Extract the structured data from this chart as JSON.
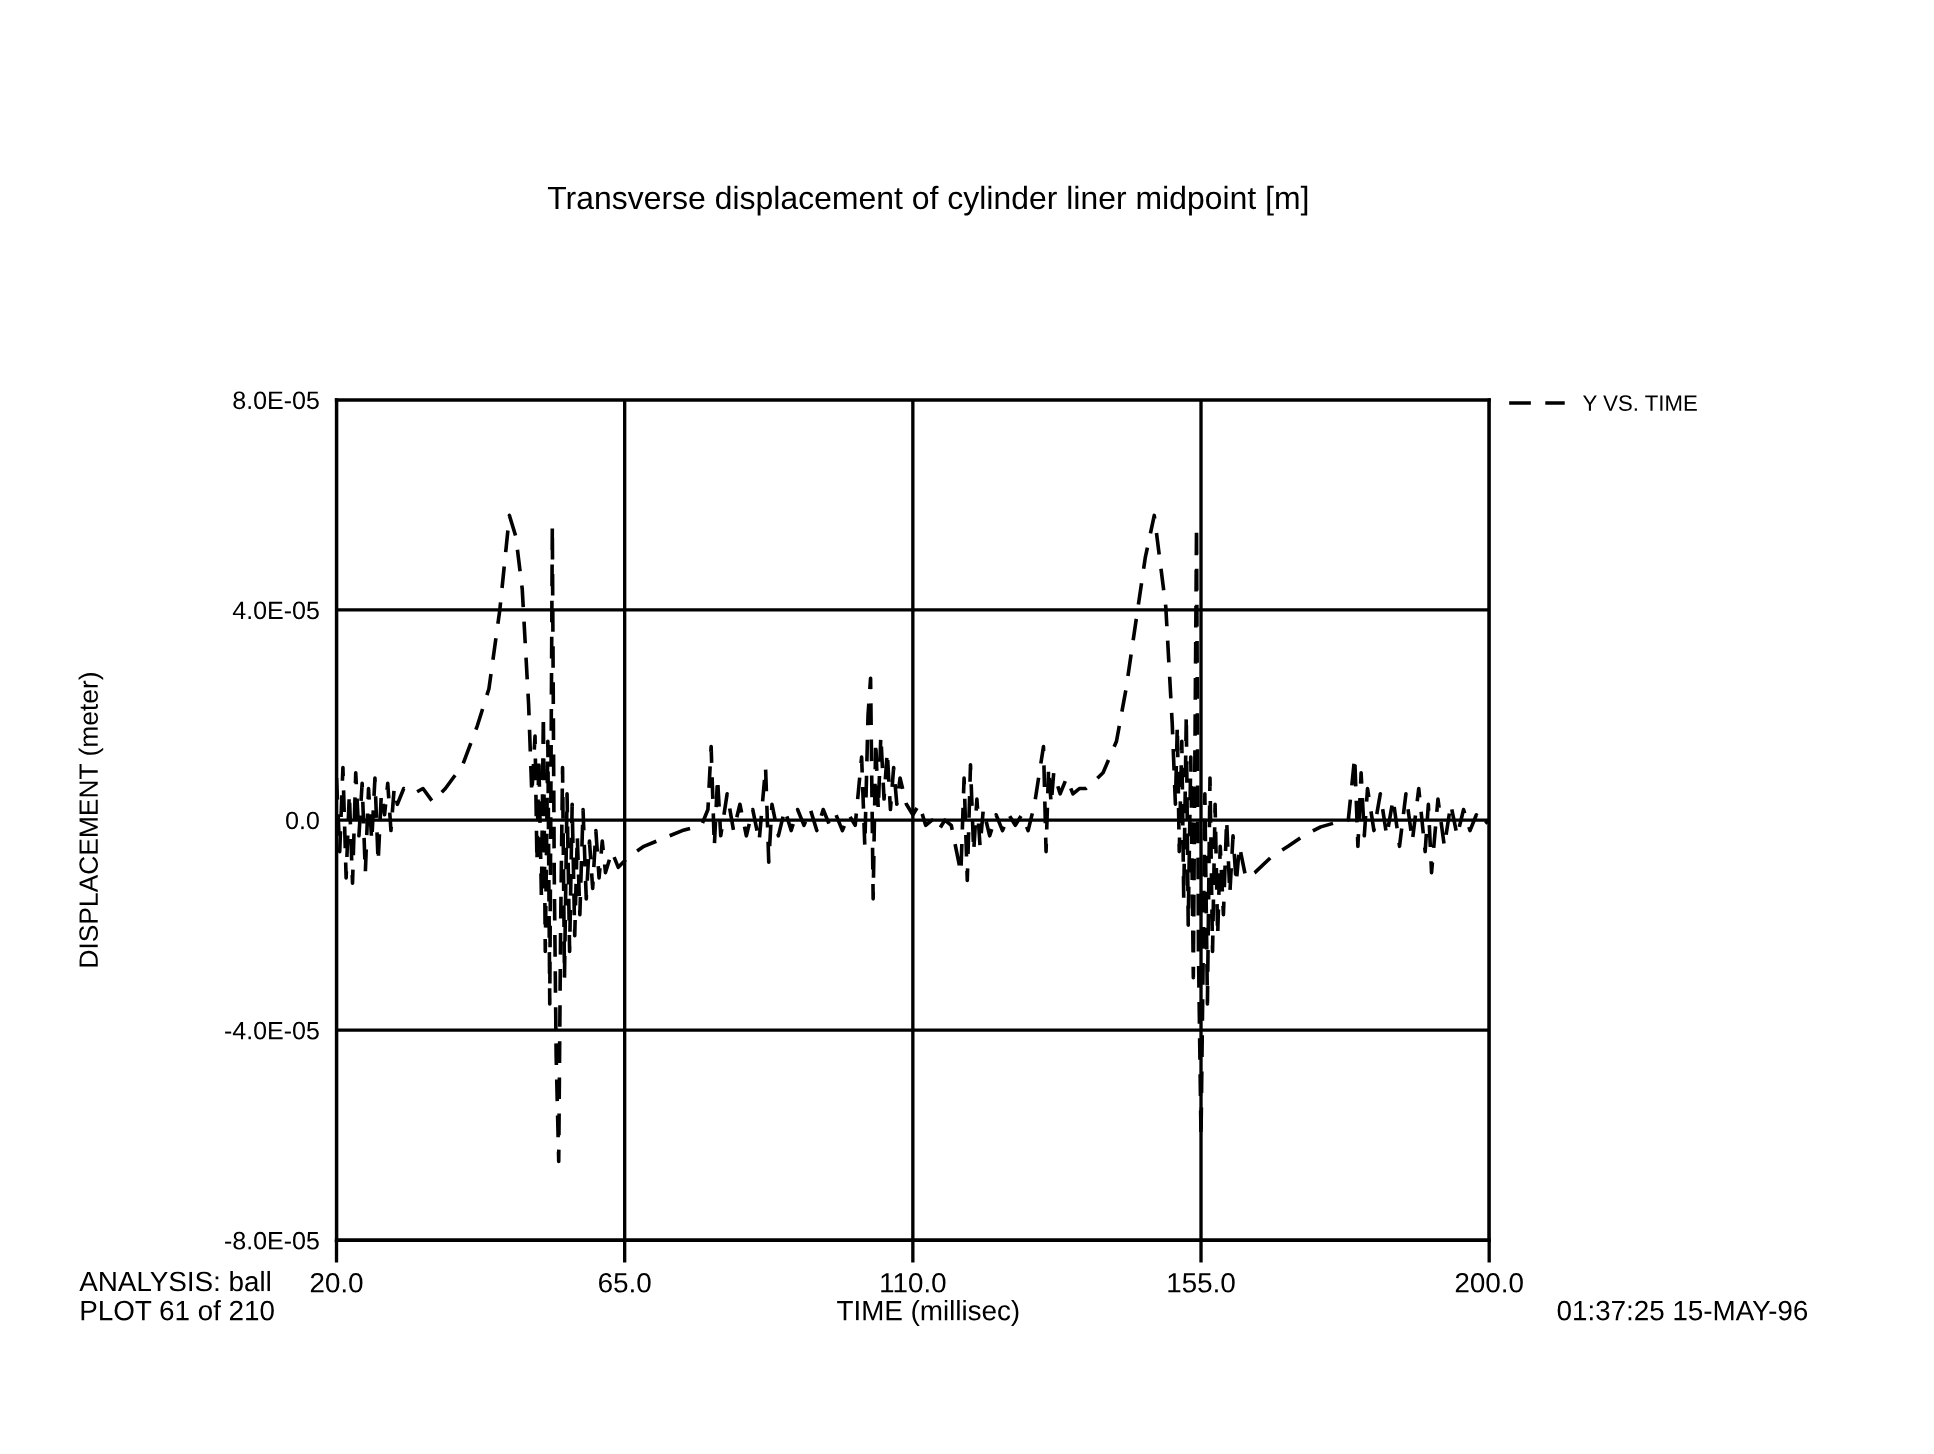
{
  "chart_data": {
    "type": "line",
    "title": "Transverse displacement of cylinder liner midpoint [m]",
    "xlabel": "TIME (millisec)",
    "ylabel": "DISPLACEMENT (meter)",
    "annotations": [
      "ANALYSIS: ball",
      "PLOT 61 of 210",
      "01:37:25 15-MAY-96"
    ],
    "xlim": [
      20,
      200
    ],
    "xticks": [
      {
        "value": 20,
        "label": "20.0"
      },
      {
        "value": 65,
        "label": "65.0"
      },
      {
        "value": 110,
        "label": "110.0"
      },
      {
        "value": 155,
        "label": "155.0"
      },
      {
        "value": 200,
        "label": "200.0"
      }
    ],
    "ylim": [
      -8e-05,
      8e-05
    ],
    "yticks": [
      {
        "value": -8e-05,
        "label": "-8.0E-05"
      },
      {
        "value": -4e-05,
        "label": "-4.0E-05"
      },
      {
        "value": 0,
        "label": "0.0"
      },
      {
        "value": 4e-05,
        "label": "4.0E-05"
      },
      {
        "value": 8e-05,
        "label": "8.0E-05"
      }
    ],
    "grid": true,
    "legend": "top right",
    "line_style": "dashed",
    "marker": "none",
    "series": [
      {
        "name": "Y VS. TIME",
        "color": "#000000",
        "x": [
          20,
          20.5,
          21,
          21.5,
          22,
          22.5,
          23,
          23.5,
          24,
          24.5,
          25,
          25.5,
          26,
          26.5,
          27,
          27.5,
          28,
          28.5,
          29,
          29.5,
          30.5,
          32,
          33.5,
          35,
          37,
          39.7,
          42,
          43.8,
          45.5,
          47,
          48,
          49,
          50,
          50.5,
          51,
          51.3,
          51.6,
          52,
          52.3,
          52.6,
          53,
          53.3,
          53.7,
          54,
          54.3,
          54.7,
          55,
          55.3,
          55.6,
          56,
          56.4,
          56.8,
          57.2,
          57.6,
          58,
          58.5,
          59,
          59.5,
          60,
          60.5,
          61,
          61.5,
          62,
          63,
          64,
          65.6,
          68,
          70.8,
          74,
          77,
          78,
          78.5,
          79,
          79.5,
          80,
          81,
          82,
          83,
          84,
          85,
          86,
          87,
          87.5,
          88,
          89,
          90,
          91,
          92,
          93,
          94,
          95,
          96,
          97,
          98,
          99,
          100,
          101,
          102,
          102.5,
          103,
          103.4,
          103.8,
          104.2,
          104.6,
          105,
          105.5,
          106,
          106.5,
          107,
          107.5,
          108,
          109,
          110,
          111,
          112,
          113,
          114,
          115,
          116,
          117.5,
          118,
          118.5,
          119,
          119.5,
          120,
          120.5,
          121,
          122,
          123,
          124,
          125,
          126,
          127,
          128,
          129,
          130.4,
          130.8,
          131.2,
          131.6,
          132,
          133,
          134,
          135,
          136,
          137,
          138,
          139.7,
          141.8,
          143.3,
          144.8,
          146.3,
          147.7,
          149.5,
          150.5,
          151,
          151.3,
          151.6,
          152,
          152.3,
          152.7,
          153,
          153.4,
          153.8,
          154.3,
          154.6,
          155,
          155.3,
          155.6,
          156,
          156.4,
          156.8,
          157.2,
          157.6,
          158,
          158.5,
          159,
          159.5,
          160,
          160.5,
          161,
          162,
          163.4,
          166,
          168.6,
          171,
          173.7,
          176,
          178,
          179,
          179.5,
          180,
          180.5,
          181,
          182,
          183,
          184,
          185,
          186,
          187,
          188,
          189,
          190,
          190.5,
          191,
          192,
          193,
          194,
          195,
          196,
          197,
          198,
          199,
          200
        ],
        "values": [
          8e-06,
          -6e-06,
          1e-05,
          -1.1e-05,
          5e-06,
          -1.2e-05,
          9e-06,
          -3e-06,
          7e-06,
          -1e-05,
          6e-06,
          -4e-06,
          8e-06,
          -8e-06,
          5e-06,
          1e-06,
          7e-06,
          -2e-06,
          6e-06,
          3e-06,
          6e-06,
          5e-06,
          6e-06,
          3.5e-06,
          6e-06,
          1.05e-05,
          1.8e-05,
          2.5e-05,
          4e-05,
          5.8e-05,
          5.4e-05,
          4.4e-05,
          2.2e-05,
          5e-06,
          1.6e-05,
          -8e-06,
          1.2e-05,
          -1.5e-05,
          2e-05,
          -2.5e-05,
          1.5e-05,
          -3.5e-05,
          5.6e-05,
          -1e-05,
          -4.5e-05,
          -6.5e-05,
          -2e-05,
          1e-05,
          -3e-05,
          5e-06,
          -2.5e-05,
          3e-06,
          -2.2e-05,
          -3e-06,
          -1.8e-05,
          2e-06,
          -1.5e-05,
          -4e-06,
          -1.3e-05,
          -2e-06,
          -1.1e-05,
          -4e-06,
          -1e-05,
          -6e-06,
          -9e-06,
          -7e-06,
          -5e-06,
          -3.6e-06,
          -2e-06,
          -1e-06,
          2e-06,
          1.4e-05,
          -5e-06,
          8e-06,
          -3e-06,
          5e-06,
          -2e-06,
          3e-06,
          -3e-06,
          2e-06,
          -4e-06,
          1e-05,
          -8e-06,
          3e-06,
          -3e-06,
          2e-06,
          -2e-06,
          2e-06,
          -1e-06,
          2e-06,
          -2e-06,
          2e-06,
          -1e-06,
          1e-06,
          -2e-06,
          1e-06,
          -1e-06,
          1.2e-05,
          -5e-06,
          2e-05,
          2.7e-05,
          -1.5e-05,
          1.5e-05,
          2e-06,
          1.6e-05,
          4e-06,
          1.3e-05,
          2e-06,
          1e-05,
          3e-06,
          8e-06,
          3e-06,
          1e-06,
          3e-06,
          -1e-06,
          0,
          -2e-06,
          0,
          -1e-06,
          -1e-05,
          8e-06,
          -1.15e-05,
          1.05e-05,
          -6e-06,
          4e-06,
          -5e-06,
          2e-06,
          -3e-06,
          1e-06,
          -2e-06,
          1e-06,
          -1e-06,
          1e-06,
          -2e-06,
          3e-06,
          1.4e-05,
          -6e-06,
          1e-05,
          3e-06,
          9e-06,
          5e-06,
          8e-06,
          5e-06,
          6e-06,
          6e-06,
          7e-06,
          9e-06,
          1.5e-05,
          2.5e-05,
          3.75e-05,
          5e-05,
          5.8e-05,
          4.06e-05,
          1.85e-05,
          3e-06,
          1.8e-05,
          -6e-06,
          1.5e-05,
          -1.5e-05,
          2e-05,
          -2e-05,
          1.2e-05,
          -3e-05,
          5.6e-05,
          -2.5e-05,
          -6.05e-05,
          -3e-05,
          5e-06,
          -3.5e-05,
          8e-06,
          -2.5e-05,
          3e-06,
          -2.2e-05,
          -5e-06,
          -1.8e-05,
          0,
          -1.4e-05,
          -3e-06,
          -1.2e-05,
          -5e-06,
          -1.1e-05,
          -1e-05,
          -7e-06,
          -5e-06,
          -3e-06,
          -1.3e-06,
          -5e-07,
          0,
          1.2e-05,
          -5e-06,
          9e-06,
          -3e-06,
          6e-06,
          -2e-06,
          5e-06,
          -3e-06,
          4e-06,
          -5e-06,
          5e-06,
          -4e-06,
          6e-06,
          -6e-06,
          3e-06,
          -1e-05,
          4e-06,
          -5e-06,
          3e-06,
          -3e-06,
          2e-06,
          -2e-06,
          1e-06,
          -1e-06,
          0
        ]
      }
    ]
  }
}
